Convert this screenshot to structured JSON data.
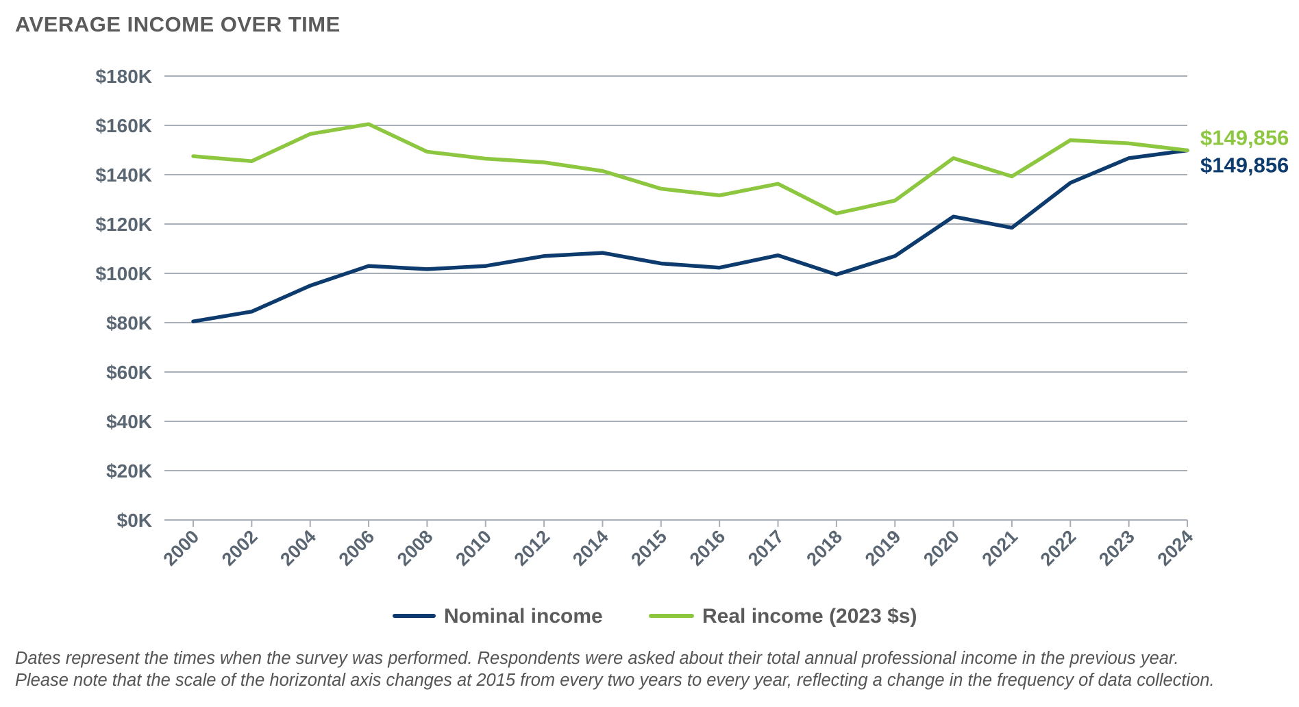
{
  "chart_data": {
    "type": "line",
    "title": "AVERAGE INCOME OVER TIME",
    "categories": [
      "2000",
      "2002",
      "2004",
      "2006",
      "2008",
      "2010",
      "2012",
      "2014",
      "2015",
      "2016",
      "2017",
      "2018",
      "2019",
      "2020",
      "2021",
      "2022",
      "2023",
      "2024"
    ],
    "series": [
      {
        "name": "Nominal income",
        "color": "#0d3b6e",
        "values": [
          80500,
          84500,
          95000,
          103000,
          101700,
          103000,
          107000,
          108300,
          104000,
          102300,
          107300,
          99500,
          107000,
          123000,
          118500,
          136700,
          146700,
          149856
        ],
        "end_label": "$149,856"
      },
      {
        "name": "Real income (2023 $s)",
        "color": "#8dc63f",
        "values": [
          147500,
          145500,
          156500,
          160500,
          149300,
          146500,
          145000,
          141500,
          134300,
          131600,
          136300,
          124300,
          129500,
          146700,
          139300,
          154000,
          152700,
          149856
        ],
        "end_label": "$149,856"
      }
    ],
    "yticks": [
      "$0K",
      "$20K",
      "$40K",
      "$60K",
      "$80K",
      "$100K",
      "$120K",
      "$140K",
      "$160K",
      "$180K"
    ],
    "ylim": [
      0,
      180000
    ],
    "xlabel": "",
    "ylabel": "",
    "grid": true,
    "legend_position": "bottom-center"
  },
  "footnote": {
    "line1": "Dates represent the times when the survey was performed. Respondents were asked about their total annual professional income in the previous year.",
    "line2": "Please note that the scale of the horizontal axis changes at 2015 from every two years to every year, reflecting a change in the frequency of data collection."
  }
}
